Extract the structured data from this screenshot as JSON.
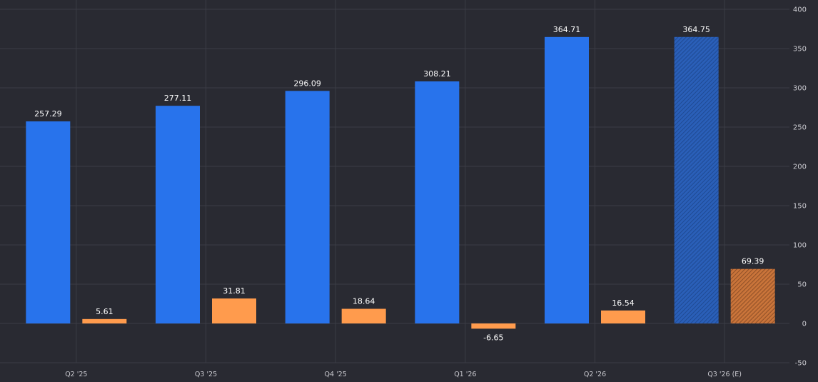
{
  "chart_data": {
    "type": "bar",
    "categories": [
      "Q2 '25",
      "Q3 '25",
      "Q4 '25",
      "Q1 '26",
      "Q2 '26",
      "Q3 '26 (E)"
    ],
    "series": [
      {
        "values": [
          257.29,
          277.11,
          296.09,
          308.21,
          364.71,
          364.75
        ],
        "color": "#2873ec"
      },
      {
        "values": [
          5.61,
          31.81,
          18.64,
          -6.65,
          16.54,
          69.39
        ],
        "color": "#ff9b4d"
      }
    ],
    "estimated_categories": [
      "Q3 '26 (E)"
    ],
    "ylim": [
      -50,
      400
    ],
    "yticks": [
      -50,
      0,
      50,
      100,
      150,
      200,
      250,
      300,
      350,
      400
    ],
    "y_axis_side": "right",
    "grid": true,
    "data_labels": true
  }
}
